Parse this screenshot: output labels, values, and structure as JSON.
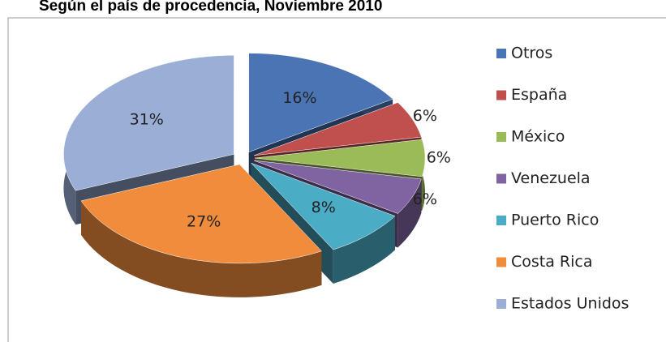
{
  "chart_data": {
    "type": "pie",
    "title": "Según el país de procedencia, Noviembre 2010",
    "categories": [
      "Otros",
      "España",
      "México",
      "Venezuela",
      "Puerto Rico",
      "Costa Rica",
      "Estados Unidos"
    ],
    "values": [
      16,
      6,
      6,
      6,
      8,
      27,
      31
    ],
    "value_labels": [
      "16%",
      "6%",
      "6%",
      "6%",
      "8%",
      "27%",
      "31%"
    ],
    "colors": [
      "#4a74b3",
      "#c0504d",
      "#9bbb59",
      "#8064a2",
      "#4bacc6",
      "#f08c3c",
      "#9aaed6"
    ],
    "legend": "right"
  }
}
